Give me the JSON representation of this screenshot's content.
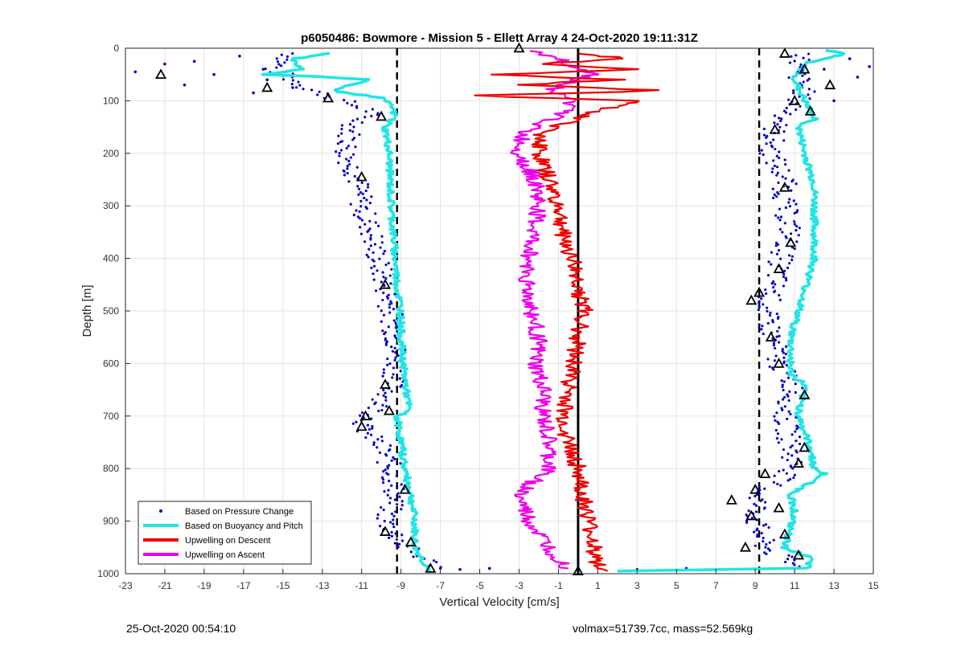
{
  "chart_data": {
    "type": "scatter",
    "title": "p6050486: Bowmore - Mission 5 - Ellett Array 4 24-Oct-2020 19:11:31Z",
    "xlabel": "Vertical Velocity [cm/s]",
    "ylabel": "Depth [m]",
    "xlim": [
      -23,
      15
    ],
    "ylim": [
      0,
      1000
    ],
    "y_reversed": true,
    "grid": true,
    "legend_position": "bottom-left",
    "x_ticks": [
      "-23",
      "-21",
      "-19",
      "-17",
      "-15",
      "-13",
      "-11",
      "-9",
      "-7",
      "-5",
      "-3",
      "-1",
      "1",
      "3",
      "5",
      "7",
      "9",
      "11",
      "13",
      "15"
    ],
    "y_ticks": [
      "0",
      "100",
      "200",
      "300",
      "400",
      "500",
      "600",
      "700",
      "800",
      "900",
      "1000"
    ],
    "reference_lines": [
      {
        "x": -9.2,
        "style": "dashed",
        "color": "#000000"
      },
      {
        "x": 0.0,
        "style": "solid",
        "color": "#000000"
      },
      {
        "x": 9.2,
        "style": "dashed",
        "color": "#000000"
      }
    ],
    "series": [
      {
        "name": "Based on Pressure Change",
        "kind": "points",
        "color": "#0000cc",
        "branches": [
          {
            "y": [
              10,
              40,
              80,
              120,
              150,
              200,
              250,
              300,
              350,
              400,
              450,
              500,
              550,
              600,
              650,
              700,
              720,
              760,
              800,
              850,
              900,
              950,
              990
            ],
            "x": [
              -14.5,
              -15.5,
              -13.5,
              -10.5,
              -11.5,
              -11.8,
              -11.2,
              -11.0,
              -10.5,
              -10.2,
              -9.8,
              -9.5,
              -9.3,
              -9.2,
              -9.5,
              -10.5,
              -11.0,
              -10.0,
              -9.5,
              -9.3,
              -9.8,
              -8.8,
              -7.0
            ]
          },
          {
            "y": [
              10,
              40,
              80,
              120,
              150,
              200,
              250,
              300,
              350,
              400,
              450,
              500,
              550,
              600,
              650,
              700,
              760,
              800,
              850,
              900,
              950,
              990
            ],
            "x": [
              11.5,
              11.0,
              11.5,
              10.8,
              10.0,
              9.8,
              10.5,
              10.5,
              10.8,
              10.3,
              10.0,
              9.5,
              9.9,
              10.2,
              11.0,
              10.5,
              10.8,
              11.0,
              9.2,
              9.0,
              9.5,
              11.2
            ]
          }
        ],
        "scatter": [
          {
            "x": -21.0,
            "y": 30
          },
          {
            "x": -20.0,
            "y": 70
          },
          {
            "x": -18.5,
            "y": 50
          },
          {
            "x": -17.2,
            "y": 15
          },
          {
            "x": -16.5,
            "y": 85
          },
          {
            "x": -15.8,
            "y": 60
          },
          {
            "x": -22.5,
            "y": 45
          },
          {
            "x": -19.5,
            "y": 25
          },
          {
            "x": -16.0,
            "y": 40
          },
          {
            "x": -14.5,
            "y": 75
          },
          {
            "x": 12.5,
            "y": 40
          },
          {
            "x": 13.8,
            "y": 20
          },
          {
            "x": 14.2,
            "y": 55
          },
          {
            "x": 13.0,
            "y": 100
          },
          {
            "x": 14.8,
            "y": 35
          },
          {
            "x": 3.0,
            "y": 992
          },
          {
            "x": 5.5,
            "y": 990
          },
          {
            "x": 7.5,
            "y": 992
          },
          {
            "x": -4.5,
            "y": 990
          },
          {
            "x": -6.0,
            "y": 992
          }
        ]
      },
      {
        "name": "Based on Buoyancy and Pitch",
        "kind": "thick-line",
        "color": "#22e5e5",
        "branches": [
          {
            "y": [
              10,
              20,
              40,
              50,
              60,
              80,
              95,
              110,
              130,
              150,
              200,
              300,
              400,
              450,
              500,
              550,
              600,
              690,
              700,
              800,
              850,
              900,
              950,
              980,
              995
            ],
            "x": [
              -12.5,
              -14.5,
              -14.0,
              -16.0,
              -10.5,
              -12.5,
              -10.0,
              -9.5,
              -9.3,
              -9.8,
              -9.6,
              -9.5,
              -9.3,
              -9.2,
              -9.0,
              -9.0,
              -8.9,
              -8.6,
              -9.2,
              -8.8,
              -8.5,
              -8.3,
              -8.3,
              -7.8,
              -7.5
            ]
          },
          {
            "y": [
              5,
              10,
              30,
              60,
              100,
              135,
              150,
              200,
              260,
              300,
              400,
              500,
              550,
              620,
              640,
              700,
              760,
              800,
              810,
              850,
              880,
              950,
              970,
              990,
              995
            ],
            "x": [
              12.5,
              13.5,
              11.5,
              11.0,
              11.5,
              12.0,
              11.2,
              11.5,
              12.0,
              12.0,
              12.0,
              11.2,
              10.8,
              10.8,
              11.5,
              11.2,
              11.8,
              12.0,
              12.5,
              10.8,
              11.0,
              10.5,
              11.8,
              11.6,
              2.0
            ]
          }
        ]
      },
      {
        "name": "Upwelling on Descent",
        "kind": "line",
        "color": "#ee0000",
        "branches": [
          {
            "y": [
              10,
              20,
              30,
              40,
              50,
              60,
              70,
              80,
              90,
              100,
              120,
              140,
              160,
              200,
              250,
              300,
              350,
              400,
              450,
              500,
              550,
              600,
              650,
              700,
              750,
              800,
              850,
              900,
              950,
              980,
              995
            ],
            "x": [
              0.5,
              2.5,
              -2.0,
              3.5,
              -4.0,
              2.0,
              -3.0,
              4.5,
              -5.5,
              3.0,
              1.0,
              -0.5,
              -1.8,
              -2.0,
              -1.5,
              -1.0,
              -0.8,
              -0.3,
              0.0,
              0.3,
              0.0,
              -0.2,
              -0.5,
              -0.8,
              -0.5,
              0.0,
              0.2,
              0.5,
              0.8,
              1.0,
              1.5
            ]
          }
        ]
      },
      {
        "name": "Upwelling on Ascent",
        "kind": "line",
        "color": "#ee00ee",
        "branches": [
          {
            "y": [
              5,
              20,
              50,
              80,
              100,
              130,
              160,
              200,
              250,
              300,
              350,
              400,
              450,
              500,
              550,
              600,
              650,
              700,
              750,
              800,
              850,
              900,
              950,
              990
            ],
            "x": [
              -2.5,
              -1.0,
              0.8,
              -1.5,
              -0.2,
              -1.0,
              -2.8,
              -3.0,
              -2.2,
              -2.0,
              -2.3,
              -2.5,
              -2.6,
              -2.4,
              -2.0,
              -2.2,
              -1.8,
              -1.8,
              -1.5,
              -1.5,
              -3.0,
              -2.5,
              -1.5,
              -0.5
            ]
          }
        ]
      }
    ],
    "markers": {
      "symbol": "triangle",
      "color": "#000000",
      "points": [
        {
          "x": -3.0,
          "y": 0
        },
        {
          "x": -21.2,
          "y": 50
        },
        {
          "x": -15.8,
          "y": 75
        },
        {
          "x": -12.7,
          "y": 95
        },
        {
          "x": -10.0,
          "y": 130
        },
        {
          "x": -11.0,
          "y": 245
        },
        {
          "x": -9.8,
          "y": 450
        },
        {
          "x": -9.8,
          "y": 640
        },
        {
          "x": -9.6,
          "y": 690
        },
        {
          "x": -10.8,
          "y": 700
        },
        {
          "x": -11.0,
          "y": 720
        },
        {
          "x": -8.8,
          "y": 840
        },
        {
          "x": -9.8,
          "y": 920
        },
        {
          "x": -8.5,
          "y": 940
        },
        {
          "x": -7.5,
          "y": 990
        },
        {
          "x": 0.0,
          "y": 995
        },
        {
          "x": 10.5,
          "y": 10
        },
        {
          "x": 11.5,
          "y": 40
        },
        {
          "x": 12.8,
          "y": 70
        },
        {
          "x": 11.0,
          "y": 100
        },
        {
          "x": 11.8,
          "y": 120
        },
        {
          "x": 10.0,
          "y": 155
        },
        {
          "x": 10.5,
          "y": 265
        },
        {
          "x": 10.8,
          "y": 370
        },
        {
          "x": 10.2,
          "y": 420
        },
        {
          "x": 9.2,
          "y": 465
        },
        {
          "x": 8.8,
          "y": 480
        },
        {
          "x": 9.8,
          "y": 550
        },
        {
          "x": 10.2,
          "y": 600
        },
        {
          "x": 11.5,
          "y": 660
        },
        {
          "x": 11.5,
          "y": 760
        },
        {
          "x": 11.2,
          "y": 790
        },
        {
          "x": 9.5,
          "y": 810
        },
        {
          "x": 9.0,
          "y": 840
        },
        {
          "x": 7.8,
          "y": 860
        },
        {
          "x": 10.2,
          "y": 875
        },
        {
          "x": 8.8,
          "y": 890
        },
        {
          "x": 10.5,
          "y": 925
        },
        {
          "x": 8.5,
          "y": 950
        },
        {
          "x": 11.2,
          "y": 965
        }
      ]
    }
  },
  "footer": {
    "left": "25-Oct-2020 00:54:10",
    "right": "volmax=51739.7cc, mass=52.569kg"
  }
}
